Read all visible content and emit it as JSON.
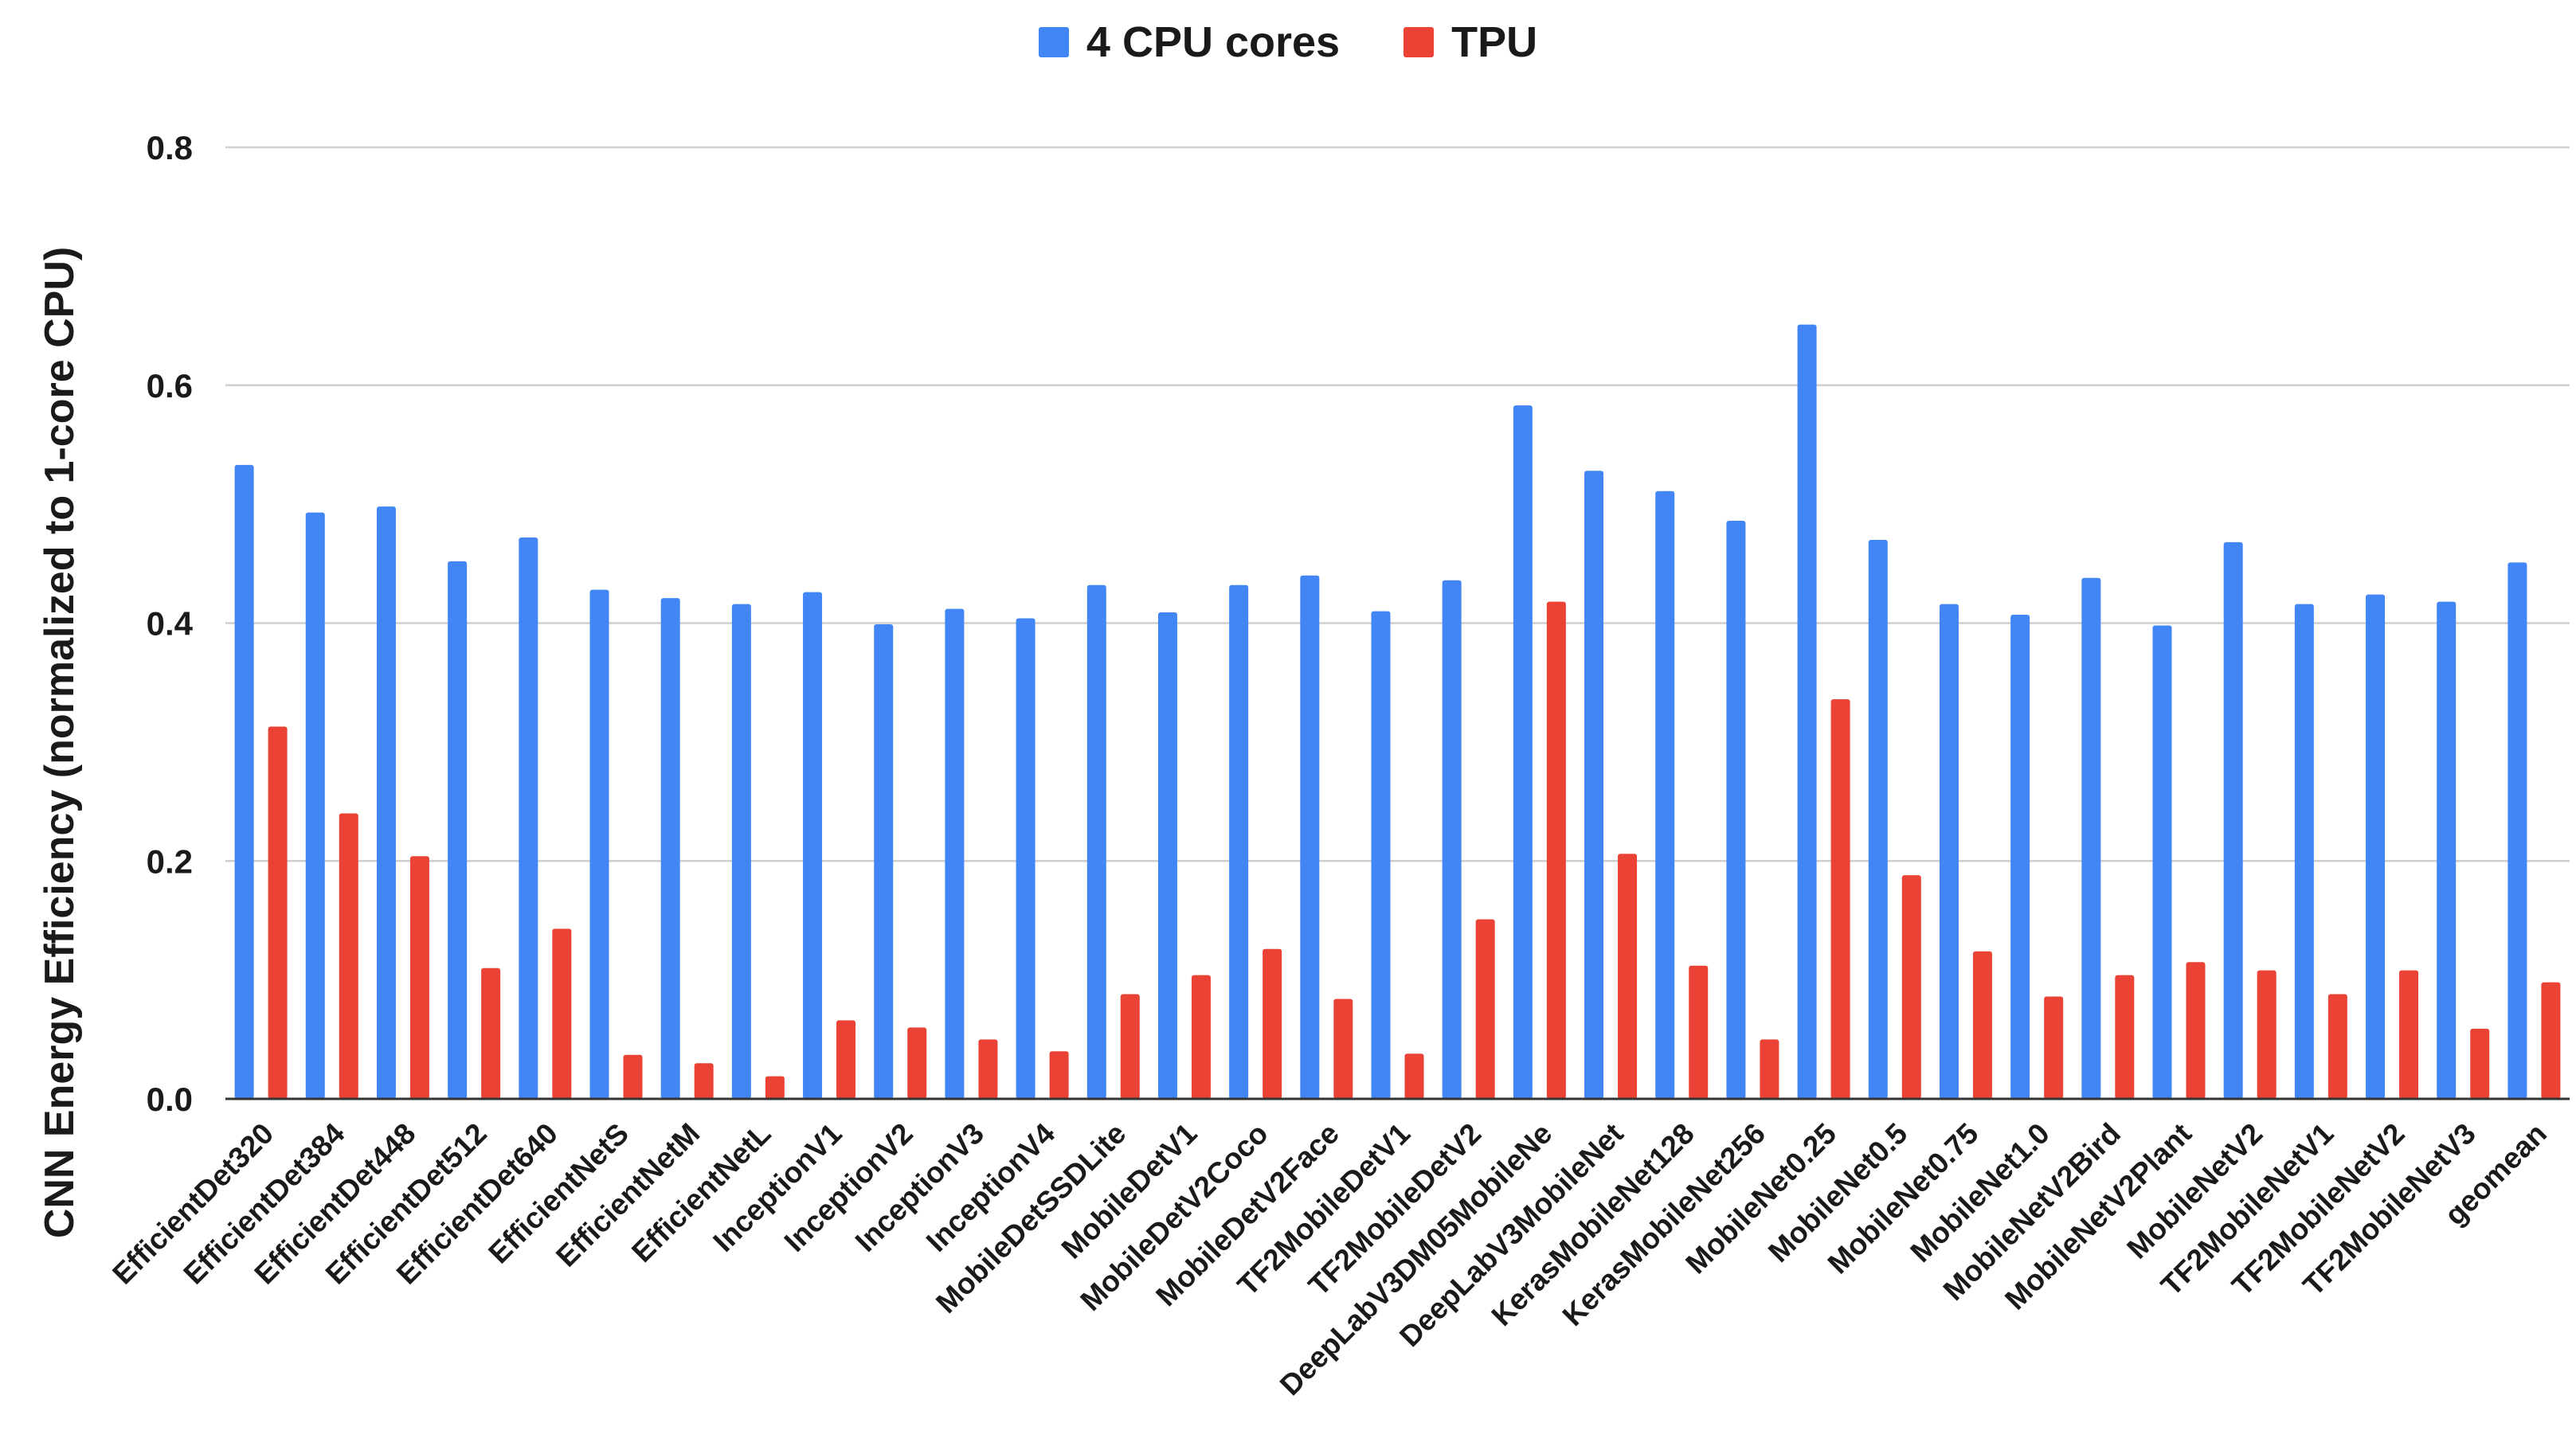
{
  "chart_data": {
    "type": "bar",
    "title": "",
    "xlabel": "",
    "ylabel": "CNN Energy Efficiency (normalized to 1-core CPU)",
    "ylim": [
      0,
      0.8
    ],
    "yticks": [
      "0.0",
      "0.2",
      "0.4",
      "0.6",
      "0.8"
    ],
    "ytick_values": [
      0,
      0.2,
      0.4,
      0.6,
      0.8
    ],
    "grid": true,
    "legend_position": "top-center",
    "categories": [
      "EfficientDet320",
      "EfficientDet384",
      "EfficientDet448",
      "EfficientDet512",
      "EfficientDet640",
      "EfficientNetS",
      "EfficientNetM",
      "EfficientNetL",
      "InceptionV1",
      "InceptionV2",
      "InceptionV3",
      "InceptionV4",
      "MobileDetSSDLite",
      "MobileDetV1",
      "MobileDetV2Coco",
      "MobileDetV2Face",
      "TF2MobileDetV1",
      "TF2MobileDetV2",
      "DeepLabV3DM05MobileNe",
      "DeepLabV3MobileNet",
      "KerasMobileNet128",
      "KerasMobileNet256",
      "MobileNet0.25",
      "MobileNet0.5",
      "MobileNet0.75",
      "MobileNet1.0",
      "MobileNetV2Bird",
      "MobileNetV2Plant",
      "MobileNetV2",
      "TF2MobileNetV1",
      "TF2MobileNetV2",
      "TF2MobileNetV3",
      "geomean"
    ],
    "series": [
      {
        "name": "4 CPU cores",
        "color": "#4285f4",
        "values": [
          0.533,
          0.493,
          0.498,
          0.452,
          0.472,
          0.428,
          0.421,
          0.416,
          0.426,
          0.399,
          0.412,
          0.404,
          0.432,
          0.409,
          0.432,
          0.44,
          0.41,
          0.436,
          0.583,
          0.528,
          0.511,
          0.486,
          0.651,
          0.47,
          0.416,
          0.407,
          0.438,
          0.398,
          0.468,
          0.416,
          0.424,
          0.418,
          0.451
        ]
      },
      {
        "name": "TPU",
        "color": "#ea4335",
        "values": [
          0.313,
          0.24,
          0.204,
          0.11,
          0.143,
          0.037,
          0.03,
          0.019,
          0.066,
          0.06,
          0.05,
          0.04,
          0.088,
          0.104,
          0.126,
          0.084,
          0.038,
          0.151,
          0.418,
          0.206,
          0.112,
          0.05,
          0.336,
          0.188,
          0.124,
          0.086,
          0.104,
          0.115,
          0.108,
          0.088,
          0.108,
          0.059,
          0.098
        ]
      }
    ]
  }
}
